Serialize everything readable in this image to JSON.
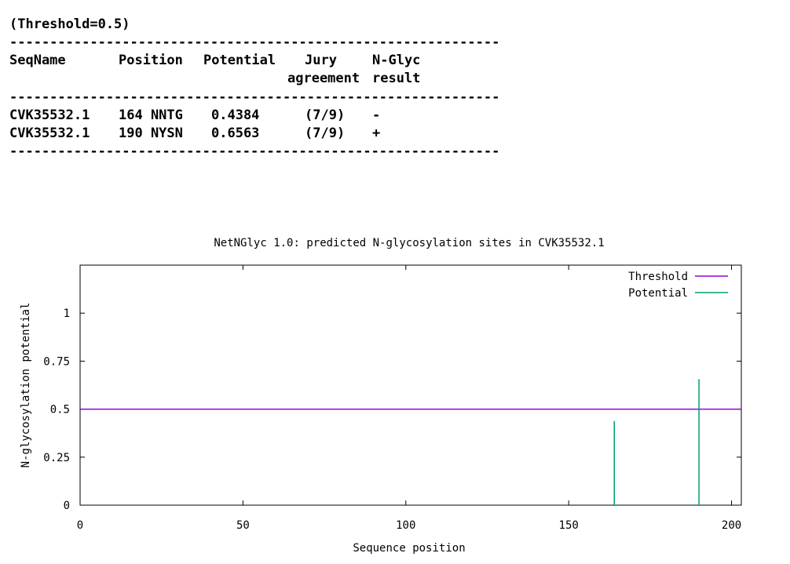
{
  "table": {
    "threshold_line": "(Threshold=0.5)",
    "separator": "-------------------------------------------------------------",
    "headers": {
      "seqname": "SeqName",
      "position": "Position",
      "potential": "Potential",
      "jury_1": "Jury",
      "jury_2": "agreement",
      "nglyc_1": "N-Glyc",
      "nglyc_2": "result"
    },
    "rows": [
      {
        "seqname": "CVK35532.1",
        "position": "164 NNTG",
        "potential": "0.4384",
        "jury": "(7/9)",
        "result": "-"
      },
      {
        "seqname": "CVK35532.1",
        "position": "190 NYSN",
        "potential": "0.6563",
        "jury": "(7/9)",
        "result": "+"
      }
    ]
  },
  "chart_data": {
    "type": "bar",
    "title": "NetNGlyc 1.0: predicted N-glycosylation sites in CVK35532.1",
    "xlabel": "Sequence position",
    "ylabel": "N-glycosylation potential",
    "xlim": [
      0,
      203
    ],
    "ylim": [
      0,
      1.25
    ],
    "xticks": [
      0,
      50,
      100,
      150,
      200
    ],
    "yticks": [
      0,
      0.25,
      0.5,
      0.75,
      1
    ],
    "ytick_labels": [
      "0",
      "0.25",
      "0.5",
      "0.75",
      "1"
    ],
    "legend_position": "top-right",
    "series": [
      {
        "name": "Threshold",
        "color": "#9400d3",
        "kind": "hline",
        "value": 0.5
      },
      {
        "name": "Potential",
        "color": "#009e73",
        "kind": "impulses",
        "points": [
          {
            "x": 164,
            "y": 0.4384
          },
          {
            "x": 190,
            "y": 0.6563
          }
        ]
      }
    ]
  }
}
